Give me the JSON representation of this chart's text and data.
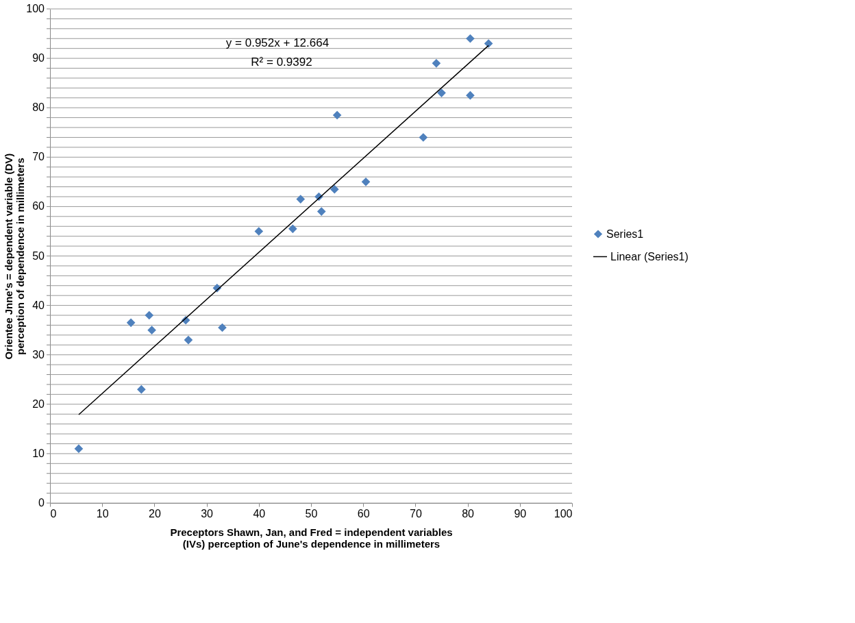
{
  "chart_data": {
    "type": "scatter",
    "xlabel": "Preceptors Shawn, Jan, and Fred = independent variables (IVs) perception of June's dependence in millimeters",
    "ylabel": "Orientee Jnne's = dependent variable (DV) perception of dependence in millimeters",
    "series": [
      {
        "name": "Series1",
        "type": "scatter",
        "color": "#4f81bd",
        "marker": "diamond",
        "x": [
          5.5,
          15.5,
          17.5,
          19,
          19.5,
          26,
          26.5,
          32,
          33,
          40,
          46.5,
          48,
          51.5,
          52,
          54.5,
          55,
          60.5,
          71.5,
          74,
          75,
          80.5,
          80.5,
          84
        ],
        "values": [
          11,
          36.5,
          23,
          38,
          35,
          37,
          33,
          43.5,
          35.5,
          55,
          55.5,
          61.5,
          62,
          59,
          63.5,
          78.5,
          65,
          74,
          89,
          83,
          94,
          82.5,
          93
        ]
      },
      {
        "name": "Linear (Series1)",
        "type": "line",
        "color": "#000000",
        "marker": "none",
        "line_style": "solid",
        "x": [
          5.5,
          84
        ],
        "values": [
          17.9,
          92.6
        ]
      }
    ],
    "annotations": [
      "y = 0.952x + 12.664",
      "R² = 0.9392"
    ],
    "xlim": [
      0,
      100
    ],
    "xticks": [
      0,
      10,
      20,
      30,
      40,
      50,
      60,
      70,
      80,
      90,
      100
    ],
    "ylim": [
      0,
      100
    ],
    "yticks": [
      0,
      {
        "value": 2,
        "label": null
      },
      {
        "value": 4,
        "label": null
      },
      {
        "value": 6,
        "label": null
      },
      {
        "value": 8,
        "label": null
      },
      10,
      {
        "value": 12,
        "label": null
      },
      {
        "value": 14,
        "label": null
      },
      {
        "value": 16,
        "label": null
      },
      {
        "value": 18,
        "label": null
      },
      20,
      {
        "value": 22,
        "label": null
      },
      {
        "value": 24,
        "label": null
      },
      {
        "value": 26,
        "label": null
      },
      {
        "value": 28,
        "label": null
      },
      30,
      {
        "value": 32,
        "label": null
      },
      {
        "value": 34,
        "label": null
      },
      {
        "value": 36,
        "label": null
      },
      {
        "value": 38,
        "label": null
      },
      40,
      {
        "value": 42,
        "label": null
      },
      {
        "value": 44,
        "label": null
      },
      {
        "value": 46,
        "label": null
      },
      {
        "value": 48,
        "label": null
      },
      50,
      {
        "value": 52,
        "label": null
      },
      {
        "value": 54,
        "label": null
      },
      {
        "value": 56,
        "label": null
      },
      {
        "value": 58,
        "label": null
      },
      60,
      {
        "value": 62,
        "label": null
      },
      {
        "value": 64,
        "label": null
      },
      {
        "value": 66,
        "label": null
      },
      {
        "value": 68,
        "label": null
      },
      70,
      {
        "value": 72,
        "label": null
      },
      {
        "value": 74,
        "label": null
      },
      {
        "value": 76,
        "label": null
      },
      {
        "value": 78,
        "label": null
      },
      80,
      {
        "value": 82,
        "label": null
      },
      {
        "value": 84,
        "label": null
      },
      {
        "value": 86,
        "label": null
      },
      {
        "value": 88,
        "label": null
      },
      90,
      {
        "value": 92,
        "label": null
      },
      {
        "value": 94,
        "label": null
      },
      {
        "value": 96,
        "label": null
      },
      {
        "value": 98,
        "label": null
      },
      100
    ],
    "grid": "y",
    "legend": "right"
  }
}
